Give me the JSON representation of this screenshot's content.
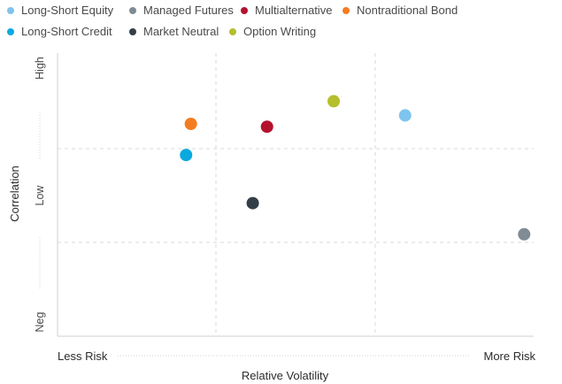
{
  "chart_data": {
    "type": "scatter",
    "xlabel": "Relative Volatility",
    "ylabel": "Correlation",
    "x_axis_ends": [
      "Less Risk",
      "More Risk"
    ],
    "y_ticks": [
      "High",
      "Low",
      "Neg"
    ],
    "xlim": [
      0,
      100
    ],
    "ylim": [
      0,
      100
    ],
    "grid": true,
    "legend_position": "top",
    "series": [
      {
        "name": "Long-Short Equity",
        "color": "#7ec4ee",
        "x": 73,
        "y": 78
      },
      {
        "name": "Managed Futures",
        "color": "#7f8c95",
        "x": 98,
        "y": 36
      },
      {
        "name": "Multialternative",
        "color": "#b3122e",
        "x": 44,
        "y": 74
      },
      {
        "name": "Nontraditional Bond",
        "color": "#f47c20",
        "x": 28,
        "y": 75
      },
      {
        "name": "Long-Short Credit",
        "color": "#0aa9e0",
        "x": 27,
        "y": 64
      },
      {
        "name": "Market Neutral",
        "color": "#333f48",
        "x": 41,
        "y": 47
      },
      {
        "name": "Option Writing",
        "color": "#b5be2b",
        "x": 58,
        "y": 83
      }
    ]
  }
}
